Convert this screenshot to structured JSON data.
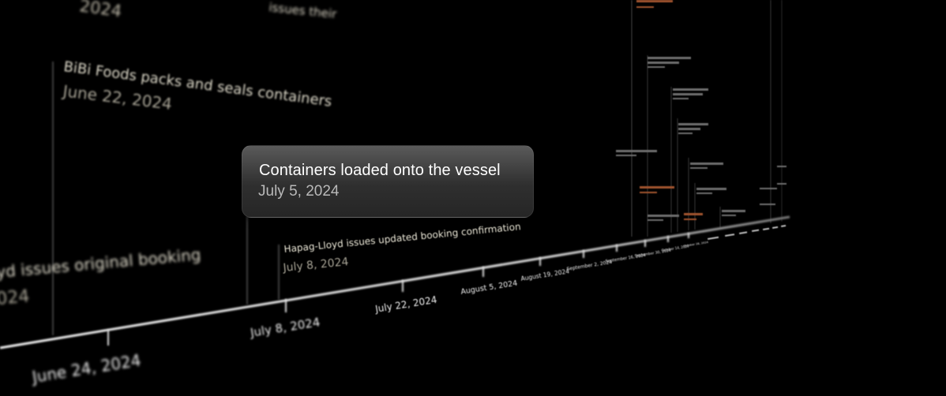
{
  "events": {
    "top_cut": {
      "date_fragment": "2024",
      "title_fragment": "issues their"
    },
    "bibi": {
      "title": "BiBi Foods packs and seals containers",
      "date": "June 22, 2024"
    },
    "original": {
      "title_fragment": "yd issues original booking",
      "date_fragment": "024"
    },
    "updated": {
      "title": "Hapag-Lloyd issues updated booking confirmation",
      "date": "July 8, 2024"
    }
  },
  "callout": {
    "title": "Containers loaded onto the vessel",
    "date": "July 5, 2024"
  },
  "axis_ticks": [
    "June 24, 2024",
    "July 8, 2024",
    "July 22, 2024",
    "August 5, 2024",
    "August 19, 2024",
    "September 2, 2024",
    "September 16, 2024",
    "September 30, 2024",
    "October 14, 2024",
    "October 28, 2024"
  ],
  "colors": {
    "background": "#000000",
    "axis": "#e6e6e6",
    "callout_bg": "#3a3a3a",
    "event_text": "#d9d4c4",
    "accent_orange": "#c8683a"
  }
}
